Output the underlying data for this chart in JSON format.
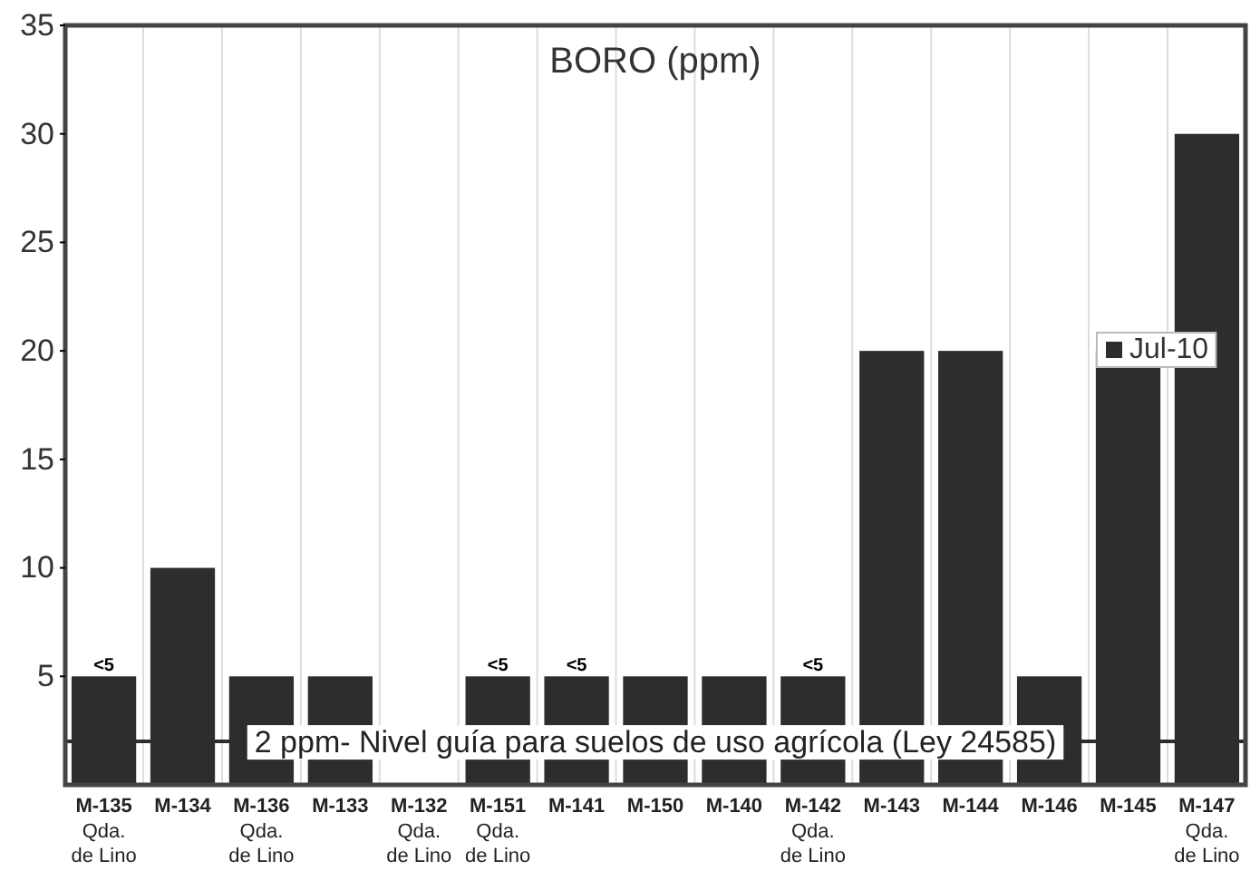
{
  "chart_data": {
    "type": "bar",
    "title": "BORO (ppm)",
    "categories": [
      "M-135\nQda.\nde Lino",
      "M-134",
      "M-136\nQda.\nde Lino",
      "M-133",
      "M-132\nQda.\nde Lino",
      "M-151\nQda.\nde Lino",
      "M-141",
      "M-150",
      "M-140",
      "M-142\nQda.\nde Lino",
      "M-143",
      "M-144",
      "M-146",
      "M-145",
      "M-147\nQda.\nde Lino"
    ],
    "series": [
      {
        "name": "Jul-10",
        "color": "#2d2d2d",
        "values": [
          5,
          10,
          5,
          5,
          null,
          5,
          5,
          5,
          5,
          5,
          20,
          20,
          5,
          20,
          30
        ],
        "value_labels": [
          "<5",
          null,
          null,
          null,
          null,
          "<5",
          "<5",
          null,
          null,
          "<5",
          null,
          null,
          null,
          null,
          null
        ]
      }
    ],
    "ylim": [
      0,
      35
    ],
    "yticks": [
      5,
      10,
      15,
      20,
      25,
      30,
      35
    ],
    "grid": "x",
    "legend": "right",
    "ref_lines": [
      {
        "axis": "y",
        "value": 2,
        "label": "2 ppm- Nivel guía para suelos de uso agrícola (Ley 24585)",
        "color": "#2d2d2d"
      }
    ]
  }
}
